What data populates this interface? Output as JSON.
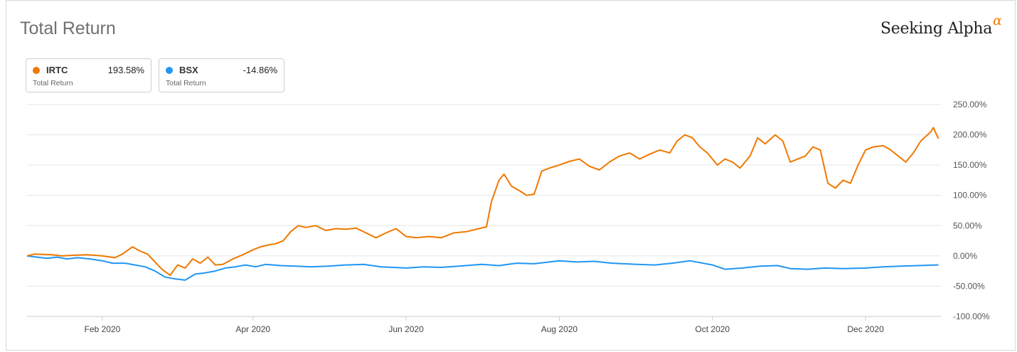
{
  "header": {
    "title": "Total Return",
    "brand": "Seeking Alpha",
    "brand_symbol": "α"
  },
  "legend": [
    {
      "ticker": "IRTC",
      "value": "193.58%",
      "sublabel": "Total Return",
      "color": "#f07800"
    },
    {
      "ticker": "BSX",
      "value": "-14.86%",
      "sublabel": "Total Return",
      "color": "#2196f3"
    }
  ],
  "chart_data": {
    "type": "line",
    "title": "Total Return",
    "xlabel": "",
    "ylabel": "",
    "ylim": [
      -100,
      250
    ],
    "xlim": [
      "2020-01-02",
      "2020-12-31"
    ],
    "y_ticks": [
      "250.00%",
      "200.00%",
      "150.00%",
      "100.00%",
      "50.00%",
      "0.00%",
      "-50.00%",
      "-100.00%"
    ],
    "x_ticks": [
      "Feb 2020",
      "Apr 2020",
      "Jun 2020",
      "Aug 2020",
      "Oct 2020",
      "Dec 2020"
    ],
    "x_tick_dates": [
      "2020-02-01",
      "2020-04-01",
      "2020-06-01",
      "2020-08-01",
      "2020-10-01",
      "2020-12-01"
    ],
    "grid": true,
    "series": [
      {
        "name": "IRTC",
        "color": "#f07800",
        "points": [
          [
            "2020-01-02",
            0
          ],
          [
            "2020-01-05",
            3
          ],
          [
            "2020-01-12",
            2
          ],
          [
            "2020-01-16",
            0
          ],
          [
            "2020-01-20",
            1
          ],
          [
            "2020-01-26",
            2
          ],
          [
            "2020-02-01",
            0
          ],
          [
            "2020-02-06",
            -3
          ],
          [
            "2020-02-09",
            3
          ],
          [
            "2020-02-13",
            15
          ],
          [
            "2020-02-16",
            8
          ],
          [
            "2020-02-19",
            3
          ],
          [
            "2020-02-22",
            -10
          ],
          [
            "2020-02-25",
            -23
          ],
          [
            "2020-02-28",
            -32
          ],
          [
            "2020-03-02",
            -15
          ],
          [
            "2020-03-05",
            -20
          ],
          [
            "2020-03-08",
            -5
          ],
          [
            "2020-03-11",
            -12
          ],
          [
            "2020-03-14",
            -2
          ],
          [
            "2020-03-17",
            -15
          ],
          [
            "2020-03-20",
            -14
          ],
          [
            "2020-03-24",
            -5
          ],
          [
            "2020-03-28",
            2
          ],
          [
            "2020-04-01",
            10
          ],
          [
            "2020-04-04",
            15
          ],
          [
            "2020-04-07",
            18
          ],
          [
            "2020-04-10",
            20
          ],
          [
            "2020-04-13",
            25
          ],
          [
            "2020-04-16",
            40
          ],
          [
            "2020-04-19",
            50
          ],
          [
            "2020-04-22",
            47
          ],
          [
            "2020-04-26",
            50
          ],
          [
            "2020-04-30",
            42
          ],
          [
            "2020-05-04",
            45
          ],
          [
            "2020-05-08",
            44
          ],
          [
            "2020-05-12",
            46
          ],
          [
            "2020-05-16",
            38
          ],
          [
            "2020-05-20",
            30
          ],
          [
            "2020-05-24",
            38
          ],
          [
            "2020-05-28",
            45
          ],
          [
            "2020-06-01",
            32
          ],
          [
            "2020-06-05",
            30
          ],
          [
            "2020-06-10",
            32
          ],
          [
            "2020-06-15",
            30
          ],
          [
            "2020-06-20",
            38
          ],
          [
            "2020-06-25",
            40
          ],
          [
            "2020-06-30",
            45
          ],
          [
            "2020-07-03",
            48
          ],
          [
            "2020-07-05",
            90
          ],
          [
            "2020-07-08",
            125
          ],
          [
            "2020-07-10",
            135
          ],
          [
            "2020-07-13",
            115
          ],
          [
            "2020-07-16",
            108
          ],
          [
            "2020-07-19",
            100
          ],
          [
            "2020-07-22",
            102
          ],
          [
            "2020-07-25",
            140
          ],
          [
            "2020-07-28",
            145
          ],
          [
            "2020-08-01",
            150
          ],
          [
            "2020-08-05",
            156
          ],
          [
            "2020-08-09",
            160
          ],
          [
            "2020-08-13",
            148
          ],
          [
            "2020-08-17",
            142
          ],
          [
            "2020-08-21",
            155
          ],
          [
            "2020-08-25",
            165
          ],
          [
            "2020-08-29",
            170
          ],
          [
            "2020-09-02",
            160
          ],
          [
            "2020-09-06",
            168
          ],
          [
            "2020-09-10",
            175
          ],
          [
            "2020-09-14",
            170
          ],
          [
            "2020-09-17",
            190
          ],
          [
            "2020-09-20",
            200
          ],
          [
            "2020-09-23",
            195
          ],
          [
            "2020-09-26",
            180
          ],
          [
            "2020-09-29",
            170
          ],
          [
            "2020-10-03",
            150
          ],
          [
            "2020-10-06",
            160
          ],
          [
            "2020-10-09",
            155
          ],
          [
            "2020-10-12",
            145
          ],
          [
            "2020-10-16",
            165
          ],
          [
            "2020-10-19",
            195
          ],
          [
            "2020-10-22",
            185
          ],
          [
            "2020-10-26",
            200
          ],
          [
            "2020-10-29",
            190
          ],
          [
            "2020-11-01",
            155
          ],
          [
            "2020-11-04",
            160
          ],
          [
            "2020-11-07",
            165
          ],
          [
            "2020-11-10",
            180
          ],
          [
            "2020-11-13",
            175
          ],
          [
            "2020-11-16",
            120
          ],
          [
            "2020-11-19",
            112
          ],
          [
            "2020-11-22",
            125
          ],
          [
            "2020-11-25",
            120
          ],
          [
            "2020-11-28",
            150
          ],
          [
            "2020-12-01",
            175
          ],
          [
            "2020-12-04",
            180
          ],
          [
            "2020-12-08",
            182
          ],
          [
            "2020-12-11",
            175
          ],
          [
            "2020-12-14",
            165
          ],
          [
            "2020-12-17",
            155
          ],
          [
            "2020-12-20",
            170
          ],
          [
            "2020-12-23",
            190
          ],
          [
            "2020-12-27",
            205
          ],
          [
            "2020-12-28",
            212
          ],
          [
            "2020-12-30",
            193.58
          ]
        ]
      },
      {
        "name": "BSX",
        "color": "#2196f3",
        "points": [
          [
            "2020-01-02",
            0
          ],
          [
            "2020-01-06",
            -2
          ],
          [
            "2020-01-10",
            -4
          ],
          [
            "2020-01-14",
            -2
          ],
          [
            "2020-01-18",
            -5
          ],
          [
            "2020-01-22",
            -3
          ],
          [
            "2020-01-27",
            -5
          ],
          [
            "2020-02-01",
            -8
          ],
          [
            "2020-02-05",
            -12
          ],
          [
            "2020-02-10",
            -12
          ],
          [
            "2020-02-14",
            -15
          ],
          [
            "2020-02-18",
            -18
          ],
          [
            "2020-02-22",
            -25
          ],
          [
            "2020-02-26",
            -35
          ],
          [
            "2020-03-01",
            -38
          ],
          [
            "2020-03-05",
            -40
          ],
          [
            "2020-03-09",
            -30
          ],
          [
            "2020-03-13",
            -28
          ],
          [
            "2020-03-17",
            -25
          ],
          [
            "2020-03-21",
            -20
          ],
          [
            "2020-03-25",
            -18
          ],
          [
            "2020-03-29",
            -15
          ],
          [
            "2020-04-02",
            -18
          ],
          [
            "2020-04-06",
            -14
          ],
          [
            "2020-04-12",
            -16
          ],
          [
            "2020-04-18",
            -17
          ],
          [
            "2020-04-24",
            -18
          ],
          [
            "2020-05-01",
            -17
          ],
          [
            "2020-05-08",
            -15
          ],
          [
            "2020-05-15",
            -14
          ],
          [
            "2020-05-22",
            -18
          ],
          [
            "2020-06-01",
            -20
          ],
          [
            "2020-06-08",
            -18
          ],
          [
            "2020-06-15",
            -19
          ],
          [
            "2020-06-22",
            -17
          ],
          [
            "2020-07-01",
            -14
          ],
          [
            "2020-07-08",
            -16
          ],
          [
            "2020-07-15",
            -12
          ],
          [
            "2020-07-22",
            -13
          ],
          [
            "2020-08-01",
            -8
          ],
          [
            "2020-08-08",
            -10
          ],
          [
            "2020-08-15",
            -9
          ],
          [
            "2020-08-22",
            -12
          ],
          [
            "2020-09-01",
            -14
          ],
          [
            "2020-09-08",
            -15
          ],
          [
            "2020-09-15",
            -12
          ],
          [
            "2020-09-22",
            -8
          ],
          [
            "2020-10-01",
            -15
          ],
          [
            "2020-10-06",
            -22
          ],
          [
            "2020-10-13",
            -20
          ],
          [
            "2020-10-20",
            -17
          ],
          [
            "2020-10-27",
            -16
          ],
          [
            "2020-11-01",
            -21
          ],
          [
            "2020-11-08",
            -22
          ],
          [
            "2020-11-15",
            -20
          ],
          [
            "2020-11-22",
            -21
          ],
          [
            "2020-12-01",
            -20
          ],
          [
            "2020-12-08",
            -18
          ],
          [
            "2020-12-15",
            -17
          ],
          [
            "2020-12-22",
            -16
          ],
          [
            "2020-12-30",
            -14.86
          ]
        ]
      }
    ]
  }
}
